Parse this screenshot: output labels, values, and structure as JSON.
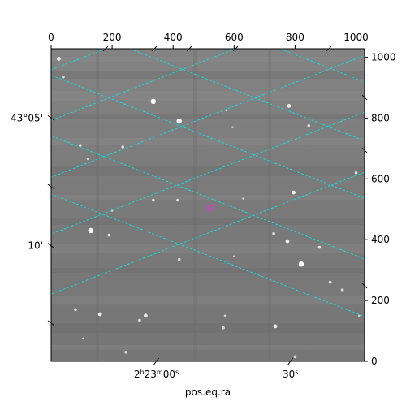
{
  "chart_data": {
    "type": "scatter",
    "title": "",
    "xlabel": "pos.eq.ra",
    "ylabel": "",
    "pixel_axes": {
      "x_ticks": [
        0,
        200,
        400,
        600,
        800,
        1000
      ],
      "x_tick_labels": [
        "0",
        "200",
        "400",
        "600",
        "800",
        "1000"
      ],
      "y_ticks": [
        0,
        200,
        400,
        600,
        800,
        1000
      ],
      "y_tick_labels": [
        "0",
        "200",
        "400",
        "600",
        "800",
        "1000"
      ],
      "xlim": [
        0,
        1028
      ],
      "ylim": [
        0,
        1028
      ]
    },
    "world_axes": {
      "ra_tick_labels": [
        {
          "label_h": "2",
          "label_m": "23",
          "label_s": "00",
          "x": 345
        },
        {
          "label_s": "30",
          "x": 785
        }
      ],
      "dec_tick_labels": [
        {
          "label": "43°05'",
          "y": 800
        },
        {
          "label": "10'",
          "y": 380
        }
      ]
    },
    "grid": "on",
    "grid_color": "#00e5e5",
    "marker": {
      "x": 522,
      "y": 505,
      "color": "#cc44cc"
    },
    "stars": [
      {
        "x": 25,
        "y": 995,
        "v": 240
      },
      {
        "x": 40,
        "y": 935,
        "v": 220
      },
      {
        "x": 335,
        "y": 855,
        "v": 255
      },
      {
        "x": 420,
        "y": 790,
        "v": 245
      },
      {
        "x": 95,
        "y": 710,
        "v": 220
      },
      {
        "x": 120,
        "y": 665,
        "v": 210
      },
      {
        "x": 235,
        "y": 705,
        "v": 225
      },
      {
        "x": 575,
        "y": 825,
        "v": 205
      },
      {
        "x": 595,
        "y": 770,
        "v": 200
      },
      {
        "x": 780,
        "y": 840,
        "v": 235
      },
      {
        "x": 845,
        "y": 775,
        "v": 220
      },
      {
        "x": 1000,
        "y": 620,
        "v": 225
      },
      {
        "x": 795,
        "y": 555,
        "v": 240
      },
      {
        "x": 335,
        "y": 530,
        "v": 220
      },
      {
        "x": 415,
        "y": 530,
        "v": 215
      },
      {
        "x": 630,
        "y": 535,
        "v": 205
      },
      {
        "x": 200,
        "y": 495,
        "v": 200
      },
      {
        "x": 130,
        "y": 430,
        "v": 250
      },
      {
        "x": 190,
        "y": 415,
        "v": 225
      },
      {
        "x": 730,
        "y": 420,
        "v": 220
      },
      {
        "x": 775,
        "y": 395,
        "v": 240
      },
      {
        "x": 880,
        "y": 375,
        "v": 225
      },
      {
        "x": 420,
        "y": 335,
        "v": 215
      },
      {
        "x": 600,
        "y": 345,
        "v": 205
      },
      {
        "x": 820,
        "y": 320,
        "v": 255
      },
      {
        "x": 915,
        "y": 260,
        "v": 225
      },
      {
        "x": 955,
        "y": 235,
        "v": 215
      },
      {
        "x": 80,
        "y": 170,
        "v": 220
      },
      {
        "x": 160,
        "y": 155,
        "v": 240
      },
      {
        "x": 310,
        "y": 150,
        "v": 230
      },
      {
        "x": 290,
        "y": 135,
        "v": 225
      },
      {
        "x": 570,
        "y": 150,
        "v": 210
      },
      {
        "x": 735,
        "y": 115,
        "v": 235
      },
      {
        "x": 565,
        "y": 110,
        "v": 215
      },
      {
        "x": 105,
        "y": 75,
        "v": 210
      },
      {
        "x": 245,
        "y": 30,
        "v": 220
      },
      {
        "x": 800,
        "y": 15,
        "v": 215
      },
      {
        "x": 1010,
        "y": 150,
        "v": 210
      }
    ]
  }
}
